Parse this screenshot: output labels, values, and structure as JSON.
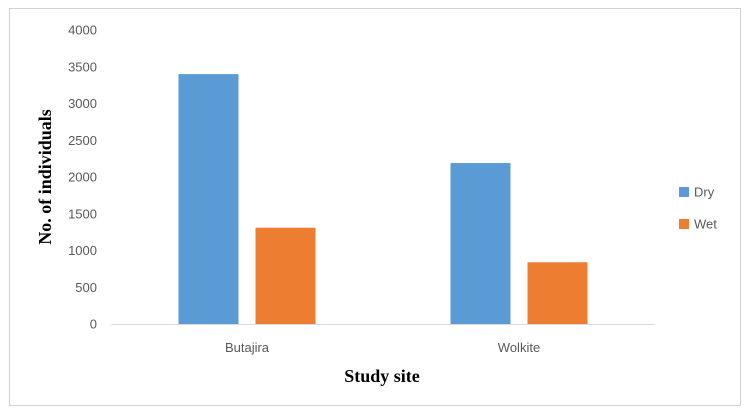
{
  "chart_data": {
    "type": "bar",
    "categories": [
      "Butajira",
      "Wolkite"
    ],
    "series": [
      {
        "name": "Dry",
        "values": [
          3400,
          2190
        ],
        "color": "#5b9bd5"
      },
      {
        "name": "Wet",
        "values": [
          1310,
          840
        ],
        "color": "#ed7d31"
      }
    ],
    "xlabel": "Study site",
    "ylabel": "No. of individuals",
    "ylim": [
      0,
      4000
    ],
    "yticks": [
      "0",
      "500",
      "1000",
      "1500",
      "2000",
      "2500",
      "3000",
      "3500",
      "4000"
    ],
    "grid": false,
    "legend_position": "right"
  }
}
